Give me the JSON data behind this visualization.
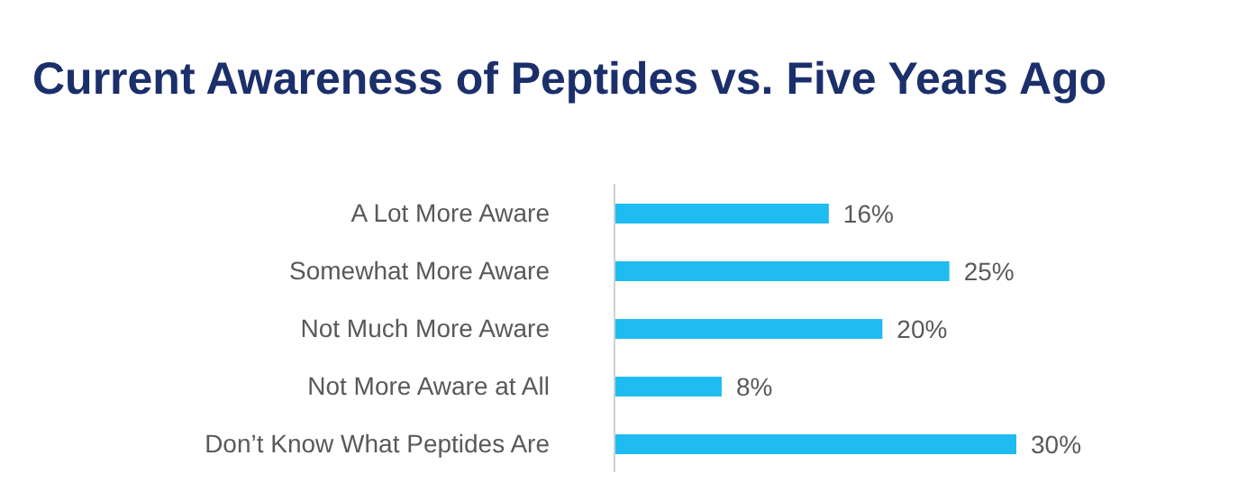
{
  "chart_data": {
    "type": "bar",
    "orientation": "horizontal",
    "title": "Current Awareness of Peptides vs. Five Years Ago",
    "categories": [
      "A Lot More Aware",
      "Somewhat More Aware",
      "Not Much More Aware",
      "Not More Aware at All",
      "Don’t Know What Peptides Are"
    ],
    "values": [
      16,
      25,
      20,
      8,
      30
    ],
    "value_labels": [
      "16%",
      "25%",
      "20%",
      "8%",
      "30%"
    ],
    "color": "#1ebcf0",
    "grid": false,
    "legend": false
  }
}
